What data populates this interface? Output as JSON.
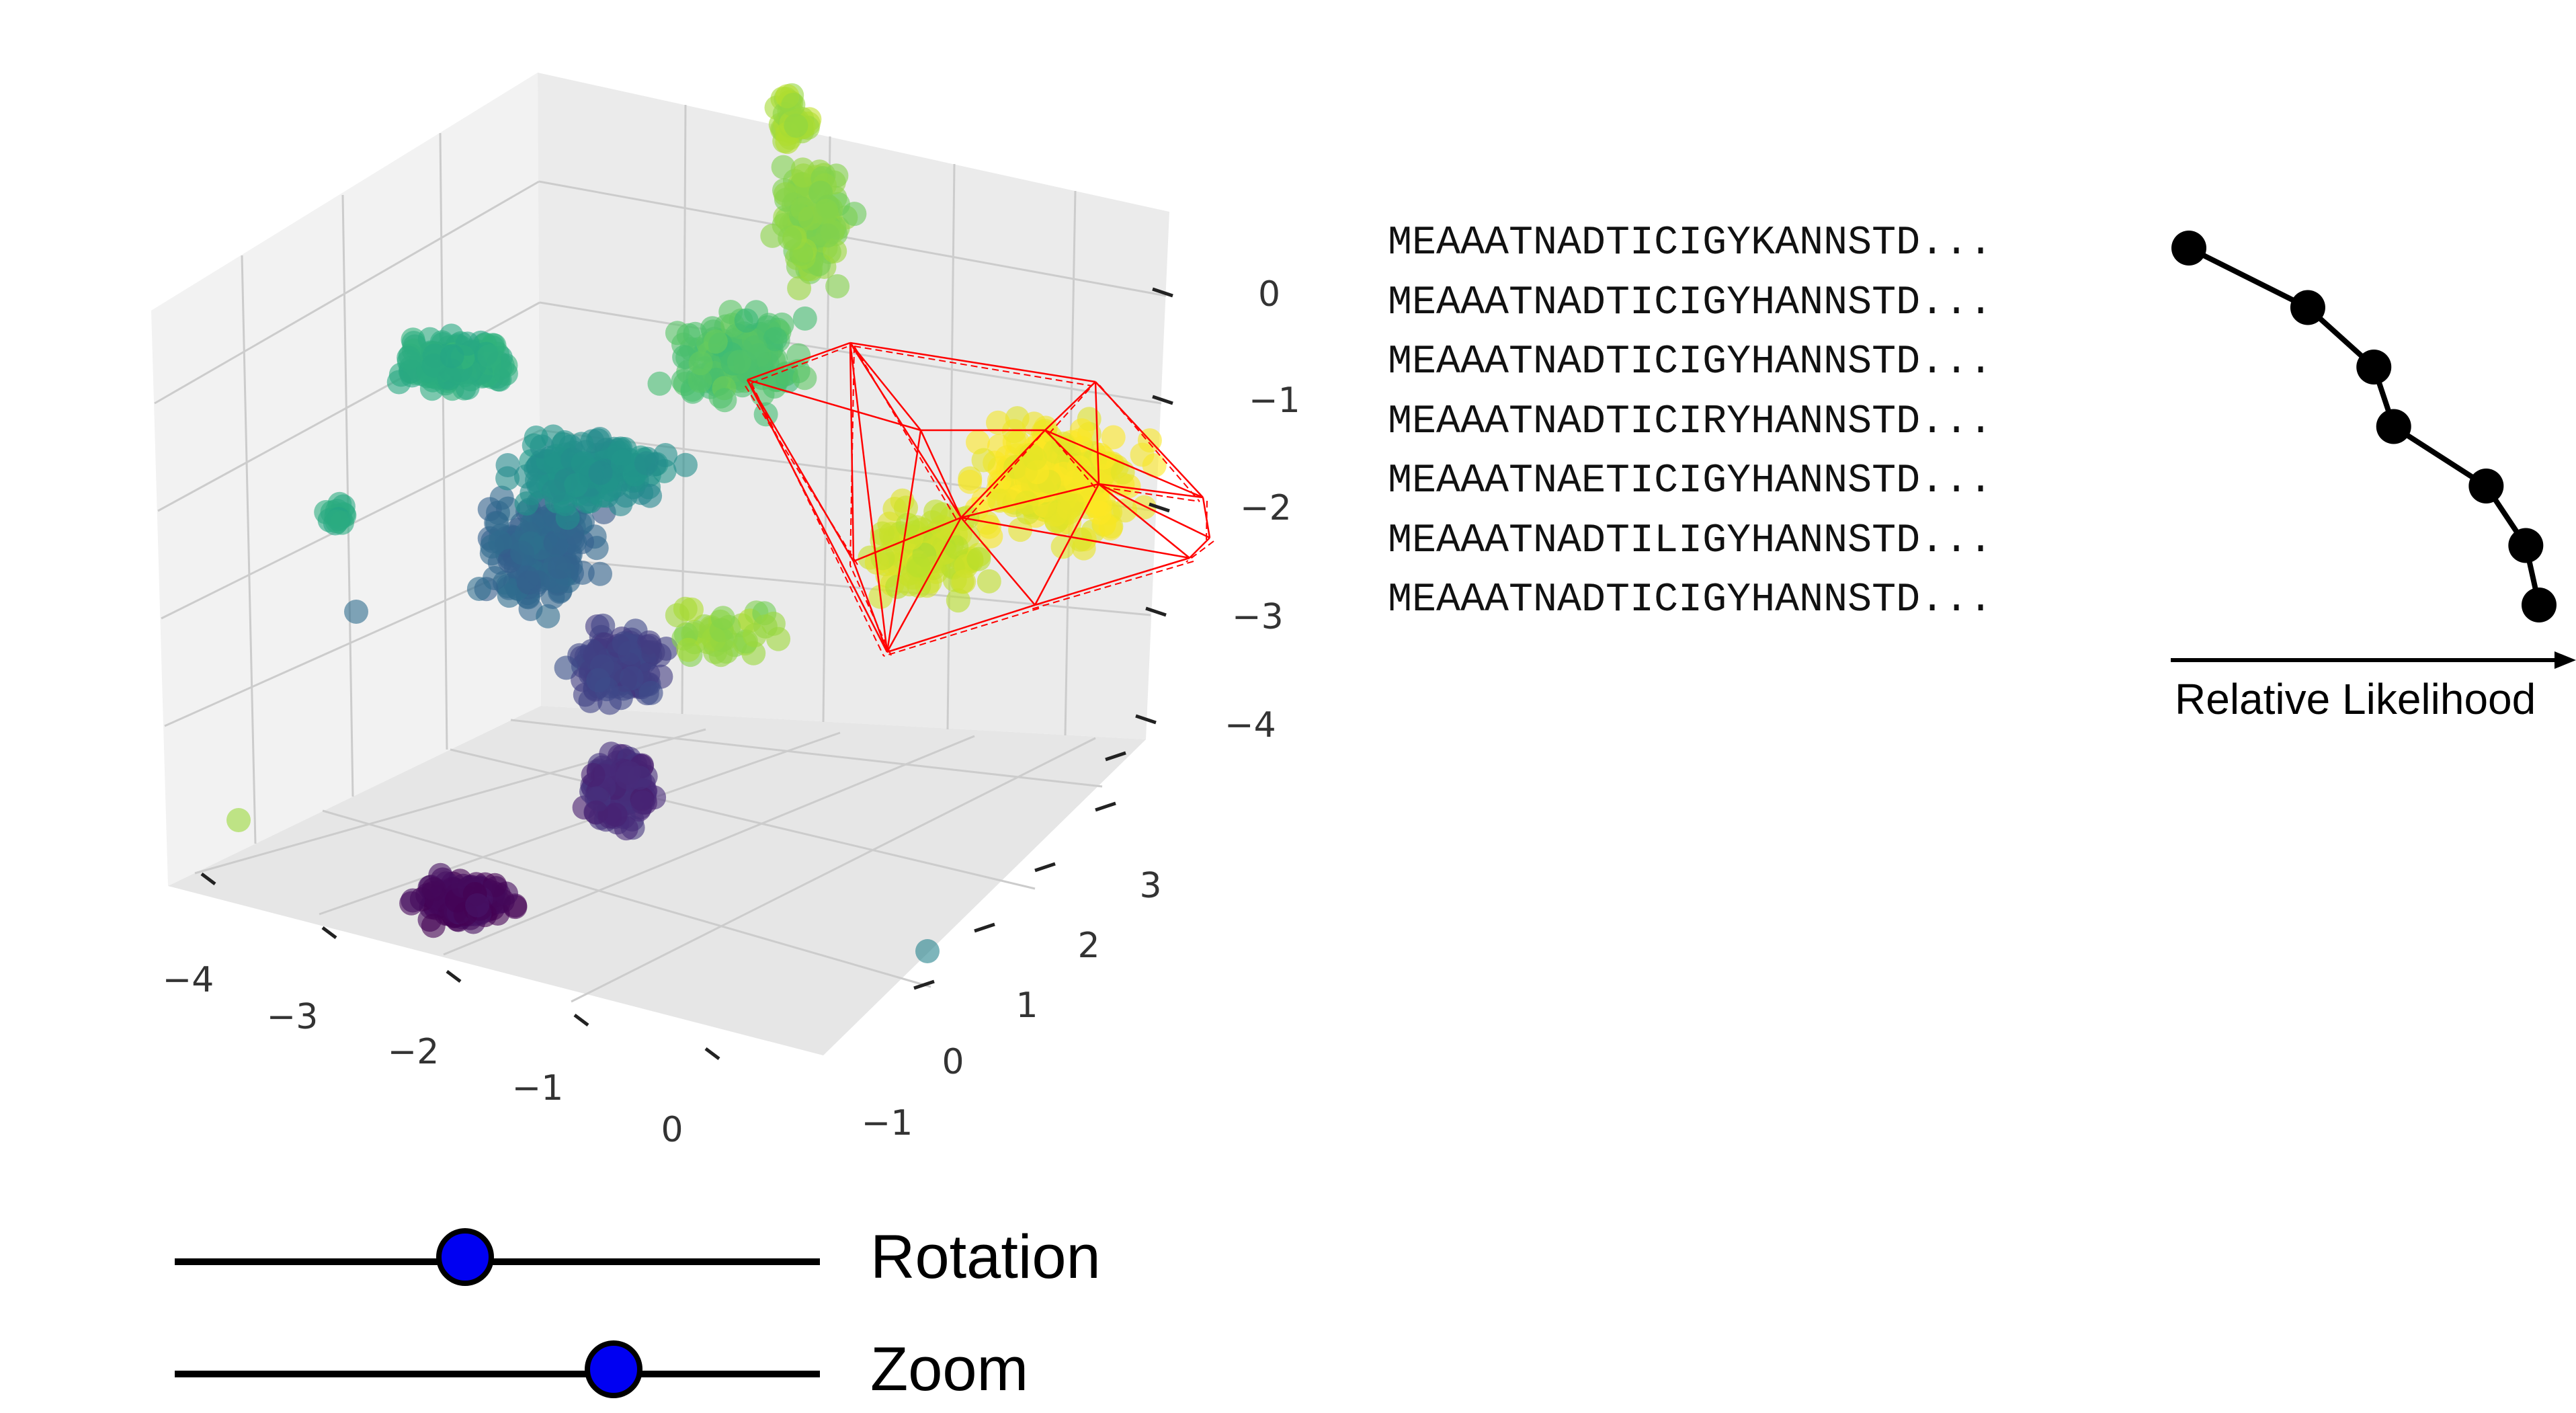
{
  "colors": {
    "hull_outline": "#ff0000",
    "slider_thumb": "#0000f2",
    "colormap": "viridis",
    "pane_left": "#f2f2f2",
    "pane_right": "#ebebeb",
    "pane_floor": "#e6e6e6",
    "grid": "#cccccc"
  },
  "plot3d": {
    "x_ticks": [
      "−4",
      "−3",
      "−2",
      "−1",
      "0"
    ],
    "y_ticks": [
      "−1",
      "0",
      "1",
      "2",
      "3"
    ],
    "z_ticks": [
      "0",
      "−1",
      "−2",
      "−3",
      "−4"
    ],
    "marker": "circle"
  },
  "sequences": [
    "MEAAATNADTICIGYKANNSTD...",
    "MEAAATNADTICIGYHANNSTD...",
    "MEAAATNADTICIGYHANNSTD...",
    "MEAAATNADTICIRYHANNSTD...",
    "MEAAATNAETICIGYHANNSTD...",
    "MEAAATNADTILIGYHANNSTD...",
    "MEAAATNADTICIGYHANNSTD..."
  ],
  "likelihood_axis": {
    "label": "Relative Likelihood",
    "relative_values": [
      0.0,
      0.18,
      0.28,
      0.31,
      0.45,
      0.51,
      0.53
    ]
  },
  "controls": {
    "rotation": {
      "label": "Rotation",
      "value": 0.45
    },
    "zoom": {
      "label": "Zoom",
      "value": 0.68
    }
  }
}
